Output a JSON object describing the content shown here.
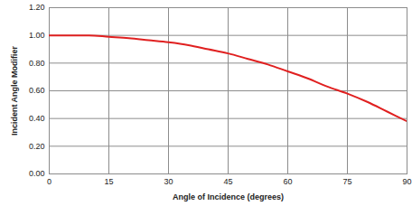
{
  "chart_data": {
    "type": "line",
    "x_label": "Angle of Incidence (degrees)",
    "y_label": "Incident Angle Modifier",
    "x": [
      0,
      5,
      10,
      15,
      20,
      25,
      30,
      35,
      40,
      45,
      50,
      55,
      60,
      65,
      70,
      75,
      80,
      85,
      90
    ],
    "values": [
      1.0,
      1.0,
      1.0,
      0.99,
      0.98,
      0.965,
      0.95,
      0.93,
      0.9,
      0.87,
      0.83,
      0.79,
      0.74,
      0.69,
      0.63,
      0.58,
      0.52,
      0.45,
      0.38
    ],
    "color": "#e02020",
    "xlim": [
      0,
      90
    ],
    "xticks": [
      0,
      15,
      30,
      45,
      60,
      75,
      90
    ],
    "ylim": [
      0,
      1.2
    ],
    "yticks": [
      {
        "value": 0,
        "label": "0.00"
      },
      {
        "value": 0.2,
        "label": "0.20"
      },
      {
        "value": 0.4,
        "label": "0.40"
      },
      {
        "value": 0.6,
        "label": "0.60"
      },
      {
        "value": 0.8,
        "label": "0.80"
      },
      {
        "value": 1.0,
        "label": "1.00"
      },
      {
        "value": 1.2,
        "label": "1.20"
      }
    ],
    "grid": true
  }
}
